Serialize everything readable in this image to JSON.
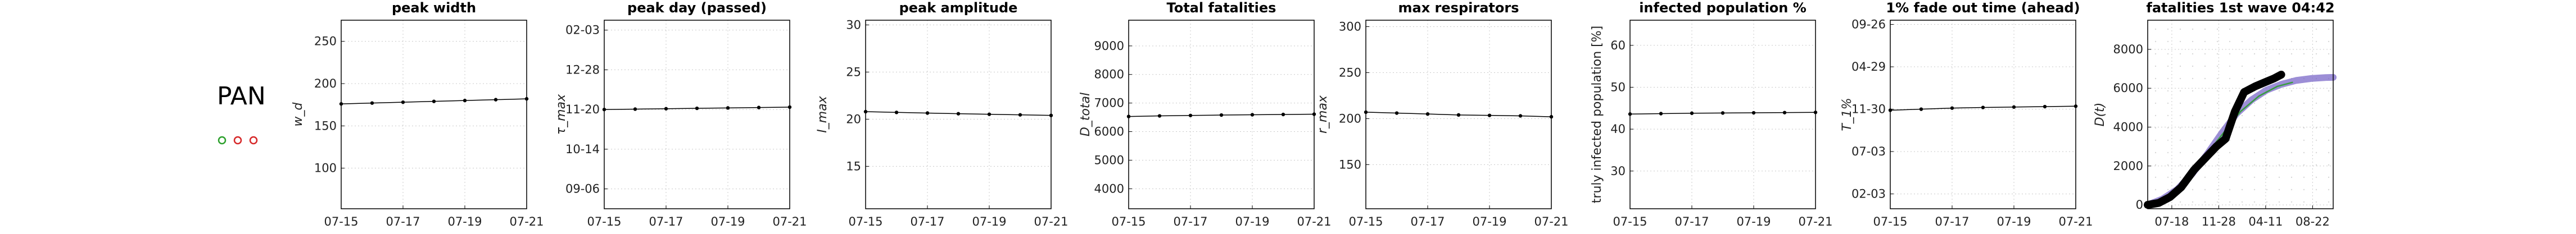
{
  "region": {
    "label": "PAN",
    "markers": [
      {
        "color": "#2ca02c"
      },
      {
        "color": "#d62728"
      },
      {
        "color": "#d62728"
      }
    ]
  },
  "chart_data": [
    {
      "type": "line",
      "title": "peak width",
      "ylabel": "w_d",
      "y_italic": true,
      "x": [
        "07-15",
        "07-16",
        "07-17",
        "07-18",
        "07-19",
        "07-20",
        "07-21"
      ],
      "x_ticks": [
        "07-15",
        "07-17",
        "07-19",
        "07-21"
      ],
      "values": [
        176,
        177,
        178,
        179,
        180,
        181,
        182
      ],
      "ylim": [
        52,
        275
      ],
      "yticks": [
        {
          "v": 100,
          "label": "100"
        },
        {
          "v": 150,
          "label": "150"
        },
        {
          "v": 200,
          "label": "200"
        },
        {
          "v": 250,
          "label": "250"
        }
      ],
      "grid": true
    },
    {
      "type": "line",
      "title": "peak day (passed)",
      "ylabel": "τ_max",
      "y_italic": true,
      "x": [
        "07-15",
        "07-16",
        "07-17",
        "07-18",
        "07-19",
        "07-20",
        "07-21"
      ],
      "x_ticks": [
        "07-15",
        "07-17",
        "07-19",
        "07-21"
      ],
      "values": [
        0,
        0.02,
        0.04,
        0.06,
        0.08,
        0.1,
        0.12
      ],
      "ylim": [
        -5,
        4.5
      ],
      "yticks": [
        {
          "v": -4,
          "label": "09-06"
        },
        {
          "v": -2,
          "label": "10-14"
        },
        {
          "v": 0,
          "label": "11-20"
        },
        {
          "v": 2,
          "label": "12-28"
        },
        {
          "v": 4,
          "label": "02-03"
        }
      ],
      "grid": true
    },
    {
      "type": "line",
      "title": "peak amplitude",
      "ylabel": "I_max",
      "y_italic": true,
      "x": [
        "07-15",
        "07-16",
        "07-17",
        "07-18",
        "07-19",
        "07-20",
        "07-21"
      ],
      "x_ticks": [
        "07-15",
        "07-17",
        "07-19",
        "07-21"
      ],
      "values": [
        20.8,
        20.72,
        20.65,
        20.58,
        20.52,
        20.46,
        20.4
      ],
      "ylim": [
        10.5,
        30.5
      ],
      "yticks": [
        {
          "v": 15,
          "label": "15"
        },
        {
          "v": 20,
          "label": "20"
        },
        {
          "v": 25,
          "label": "25"
        },
        {
          "v": 30,
          "label": "30"
        }
      ],
      "grid": true
    },
    {
      "type": "line",
      "title": "Total fatalities",
      "ylabel": "D_total",
      "y_italic": true,
      "x": [
        "07-15",
        "07-16",
        "07-17",
        "07-18",
        "07-19",
        "07-20",
        "07-21"
      ],
      "x_ticks": [
        "07-15",
        "07-17",
        "07-19",
        "07-21"
      ],
      "values": [
        6530,
        6550,
        6565,
        6580,
        6590,
        6600,
        6610
      ],
      "ylim": [
        3300,
        9900
      ],
      "yticks": [
        {
          "v": 4000,
          "label": "4000"
        },
        {
          "v": 5000,
          "label": "5000"
        },
        {
          "v": 6000,
          "label": "6000"
        },
        {
          "v": 7000,
          "label": "7000"
        },
        {
          "v": 8000,
          "label": "8000"
        },
        {
          "v": 9000,
          "label": "9000"
        }
      ],
      "grid": true
    },
    {
      "type": "line",
      "title": "max respirators",
      "ylabel": "r_max",
      "y_italic": true,
      "x": [
        "07-15",
        "07-16",
        "07-17",
        "07-18",
        "07-19",
        "07-20",
        "07-21"
      ],
      "x_ticks": [
        "07-15",
        "07-17",
        "07-19",
        "07-21"
      ],
      "values": [
        207,
        206,
        205,
        204,
        203.5,
        203,
        202
      ],
      "ylim": [
        102,
        307
      ],
      "yticks": [
        {
          "v": 150,
          "label": "150"
        },
        {
          "v": 200,
          "label": "200"
        },
        {
          "v": 250,
          "label": "250"
        },
        {
          "v": 300,
          "label": "300"
        }
      ],
      "grid": true
    },
    {
      "type": "line",
      "title": "infected population %",
      "ylabel": "truly infected population [%]",
      "y_italic": false,
      "x": [
        "07-15",
        "07-16",
        "07-17",
        "07-18",
        "07-19",
        "07-20",
        "07-21"
      ],
      "x_ticks": [
        "07-15",
        "07-17",
        "07-19",
        "07-21"
      ],
      "values": [
        43.6,
        43.7,
        43.8,
        43.85,
        43.9,
        43.95,
        44.0
      ],
      "ylim": [
        21,
        66
      ],
      "yticks": [
        {
          "v": 30,
          "label": "30"
        },
        {
          "v": 40,
          "label": "40"
        },
        {
          "v": 50,
          "label": "50"
        },
        {
          "v": 60,
          "label": "60"
        }
      ],
      "grid": true
    },
    {
      "type": "line",
      "title": "1% fade out time (ahead)",
      "ylabel": "T_1%",
      "y_italic": true,
      "x": [
        "07-15",
        "07-16",
        "07-17",
        "07-18",
        "07-19",
        "07-20",
        "07-21"
      ],
      "x_ticks": [
        "07-15",
        "07-17",
        "07-19",
        "07-21"
      ],
      "values": [
        -0.05,
        0.0,
        0.05,
        0.08,
        0.1,
        0.12,
        0.14
      ],
      "ylim": [
        -4.7,
        4.2
      ],
      "yticks": [
        {
          "v": -4,
          "label": "02-03"
        },
        {
          "v": -2,
          "label": "07-03"
        },
        {
          "v": 0,
          "label": "11-30"
        },
        {
          "v": 2,
          "label": "04-29"
        },
        {
          "v": 4,
          "label": "09-26"
        }
      ],
      "grid": true
    }
  ],
  "wave_chart": {
    "type": "line",
    "title": "fatalities 1st wave 04:42",
    "ylabel": "D(t)",
    "x_ticks": [
      "07-18",
      "11-28",
      "04-11",
      "08-22"
    ],
    "yticks": [
      0,
      2000,
      4000,
      6000,
      8000
    ],
    "ylim": [
      -200,
      9500
    ],
    "xlim": [
      0,
      1
    ],
    "series": [
      {
        "color": "#000000",
        "points": [
          [
            0.0,
            0
          ],
          [
            0.06,
            100
          ],
          [
            0.12,
            400
          ],
          [
            0.18,
            900
          ],
          [
            0.25,
            1800
          ],
          [
            0.32,
            2500
          ],
          [
            0.37,
            3000
          ],
          [
            0.42,
            3400
          ],
          [
            0.47,
            4800
          ],
          [
            0.52,
            5800
          ],
          [
            0.58,
            6100
          ],
          [
            0.63,
            6300
          ],
          [
            0.68,
            6500
          ],
          [
            0.72,
            6700
          ]
        ]
      },
      {
        "color": "#7b68c8",
        "points": [
          [
            0.0,
            0
          ],
          [
            0.08,
            300
          ],
          [
            0.16,
            800
          ],
          [
            0.24,
            1600
          ],
          [
            0.32,
            2600
          ],
          [
            0.4,
            3700
          ],
          [
            0.48,
            4700
          ],
          [
            0.56,
            5400
          ],
          [
            0.64,
            5900
          ],
          [
            0.72,
            6200
          ],
          [
            0.8,
            6400
          ],
          [
            0.88,
            6500
          ],
          [
            0.96,
            6550
          ],
          [
            1.0,
            6560
          ]
        ]
      },
      {
        "color": "#2ca02c",
        "points": [
          [
            0.0,
            0
          ],
          [
            0.1,
            400
          ],
          [
            0.2,
            1300
          ],
          [
            0.3,
            2400
          ],
          [
            0.4,
            3600
          ],
          [
            0.5,
            4800
          ],
          [
            0.6,
            5600
          ],
          [
            0.7,
            6100
          ],
          [
            0.78,
            6300
          ]
        ]
      }
    ]
  }
}
